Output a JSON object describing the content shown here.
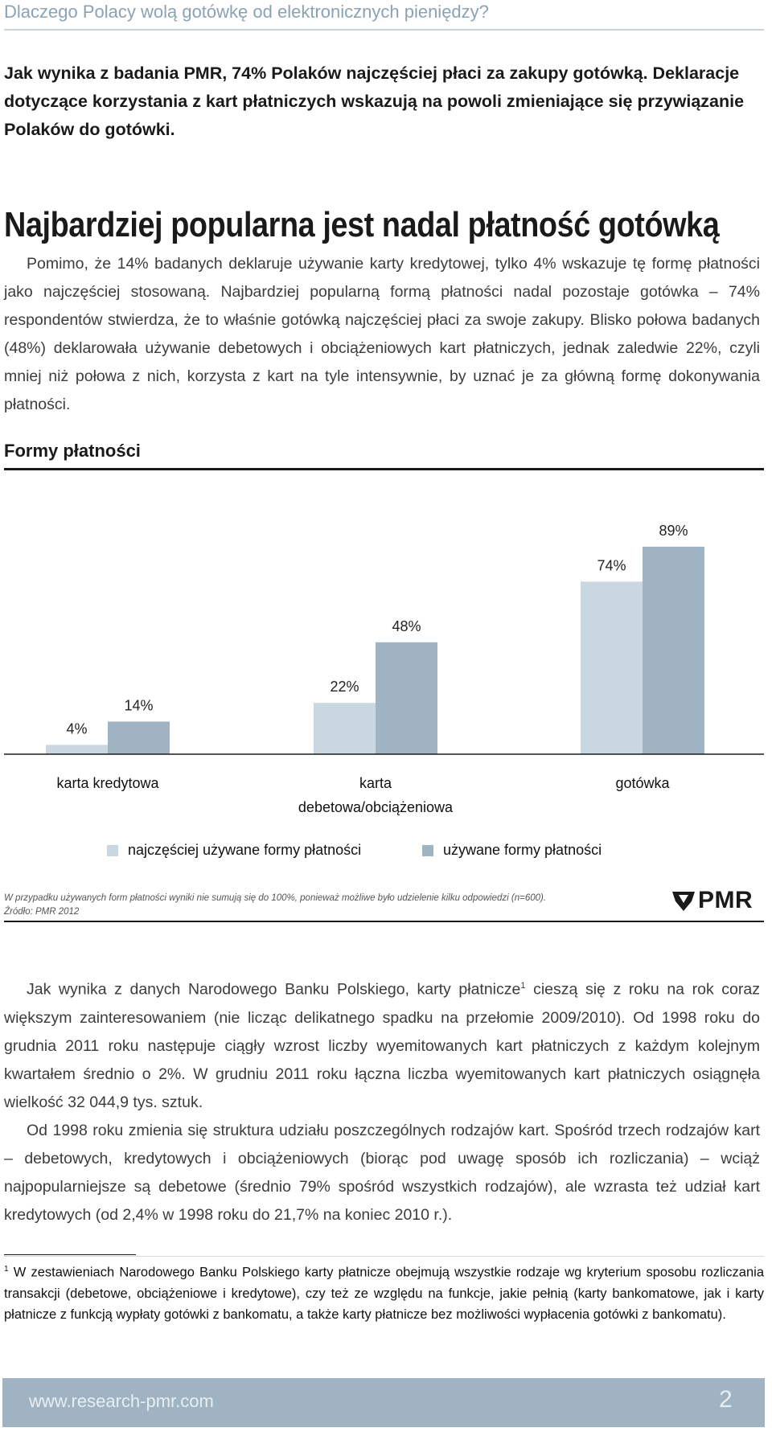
{
  "header": {
    "title": "Dlaczego Polacy wolą gotówkę od elektronicznych pieniędzy?"
  },
  "lead": "Jak wynika z badania PMR, 74% Polaków najczęściej płaci za zakupy gotówką. Deklaracje dotyczące korzystania z kart płatniczych wskazują na powoli zmieniające się przywiązanie Polaków do gotówki.",
  "section_title": "Najbardziej popularna jest nadal płatność gotówką",
  "section_body": "Pomimo, że 14% badanych deklaruje używanie karty kredytowej, tylko 4% wskazuje tę formę płatności jako najczęściej stosowaną. Najbardziej popularną formą płatności nadal pozostaje gotówka – 74% respondentów stwierdza, że to właśnie gotówką najczęściej płaci za swoje zakupy. Blisko połowa badanych (48%) deklarowała używanie debetowych i obciążeniowych kart płatniczych, jednak zaledwie 22%, czyli mniej niż połowa z nich, korzysta z kart na tyle intensywnie, by uznać je za główną formę dokonywania płatności.",
  "chart_data": {
    "type": "bar",
    "title": "Formy płatności",
    "categories": [
      "karta kredytowa",
      "karta debetowa/obciążeniowa",
      "gotówka"
    ],
    "category_lines": [
      [
        "karta kredytowa"
      ],
      [
        "karta",
        "debetowa/obciążeniowa"
      ],
      [
        "gotówka"
      ]
    ],
    "series": [
      {
        "name": "najczęściej używane formy płatności",
        "values": [
          4,
          22,
          74
        ],
        "labels": [
          "4%",
          "22%",
          "74%"
        ],
        "color": "#c9d8e0"
      },
      {
        "name": "używane formy płatności",
        "values": [
          14,
          48,
          89
        ],
        "labels": [
          "14%",
          "48%",
          "89%"
        ],
        "color": "#9fb3c2"
      }
    ],
    "ylim": [
      0,
      100
    ],
    "legend_position": "bottom",
    "grid": false
  },
  "chart_note": {
    "line1": "W przypadku używanych form płatności wyniki nie sumują się do 100%, ponieważ możliwe było udzielenie kilku odpowiedzi (n=600).",
    "line2": "Źródło: PMR 2012",
    "logo_text": "PMR"
  },
  "body": {
    "p1_a": "Jak wynika z danych Narodowego Banku Polskiego, karty płatnicze",
    "p1_sup": "1",
    "p1_b": " cieszą się z roku na rok coraz większym zainteresowaniem (nie licząc delikatnego spadku na przełomie 2009/2010). Od 1998 roku do grudnia 2011 roku następuje ciągły wzrost liczby wyemitowanych kart płatniczych z każdym kolejnym kwartałem średnio o 2%. W grudniu 2011 roku łączna liczba wyemitowanych kart płatniczych osiągnęła wielkość 32 044,9 tys. sztuk.",
    "p2": "Od 1998 roku zmienia się struktura udziału poszczególnych rodzajów kart. Spośród trzech rodzajów kart – debetowych, kredytowych i obciążeniowych (biorąc pod uwagę sposób ich rozliczania) – wciąż najpopularniejsze są debetowe (średnio 79% spośród wszystkich rodzajów), ale wzrasta też udział kart kredytowych (od 2,4% w 1998 roku do 21,7% na koniec 2010 r.)."
  },
  "footnote": {
    "marker": "1",
    "text": " W zestawieniach Narodowego Banku Polskiego karty płatnicze obejmują wszystkie rodzaje wg kryterium sposobu rozliczania transakcji (debetowe, obciążeniowe i kredytowe), czy też ze względu na funkcje, jakie pełnią (karty bankomatowe, jak i karty płatnicze z funkcją wypłaty gotówki z bankomatu, a także karty płatnicze bez możliwości wypłacenia gotówki z bankomatu)."
  },
  "footer": {
    "url": "www.research-pmr.com",
    "page": "2"
  }
}
